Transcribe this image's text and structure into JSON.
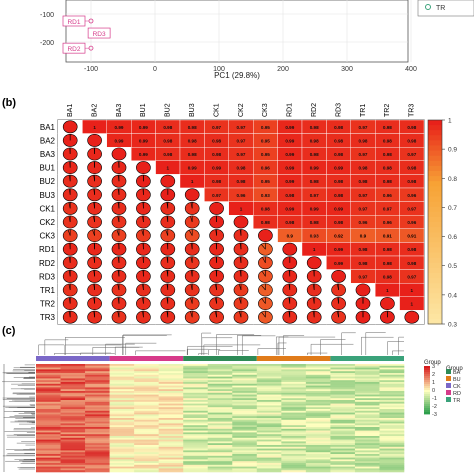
{
  "panels": {
    "b_label": "(b)",
    "c_label": "(c)"
  },
  "colors": {
    "corr_high": "#e8211a",
    "corr_mid": "#f7a235",
    "corr_low": "#fde9a8",
    "heat_high": "#d7191c",
    "heat_mid": "#ffffbf",
    "heat_low": "#1a9641",
    "group_BA": "#2e8b57",
    "group_BU": "#e07b1a",
    "group_CK": "#7b68c8",
    "group_RD": "#d63a8a",
    "group_TR": "#3aa27a"
  },
  "chart_data": [
    {
      "type": "scatter",
      "panel": "a",
      "xlabel": "PC1 (29.8%)",
      "ylabel": "",
      "x_ticks": [
        "-100",
        "0",
        "100",
        "200",
        "300",
        "400"
      ],
      "y_ticks": [
        "-100",
        "-200"
      ],
      "points": [
        {
          "label": "RD1",
          "x": -100,
          "y": -125
        },
        {
          "label": "RD3",
          "x": -92,
          "y": -168
        },
        {
          "label": "RD2",
          "x": -100,
          "y": -222
        }
      ],
      "legend": [
        {
          "label": "TR",
          "color": "#3aa27a"
        }
      ]
    },
    {
      "type": "heatmap",
      "panel": "b",
      "labels": [
        "BA1",
        "BA2",
        "BA3",
        "BU1",
        "BU2",
        "BU3",
        "CK1",
        "CK2",
        "CK3",
        "RD1",
        "RD2",
        "RD3",
        "TR1",
        "TR2",
        "TR3"
      ],
      "upper_values": [
        [
          null,
          1,
          0.99,
          0.99,
          0.98,
          0.98,
          0.97,
          0.97,
          0.95,
          0.99,
          0.98,
          0.98,
          0.97,
          0.98,
          0.98
        ],
        [
          null,
          null,
          0.99,
          0.99,
          0.98,
          0.98,
          0.98,
          0.97,
          0.95,
          0.99,
          0.98,
          0.98,
          0.98,
          0.98,
          0.98
        ],
        [
          null,
          null,
          null,
          0.99,
          0.98,
          0.98,
          0.98,
          0.97,
          0.95,
          0.99,
          0.98,
          0.98,
          0.97,
          0.98,
          0.97
        ],
        [
          null,
          null,
          null,
          null,
          1,
          0.99,
          0.99,
          0.98,
          0.96,
          0.99,
          0.99,
          0.99,
          0.98,
          0.98,
          0.98
        ],
        [
          null,
          null,
          null,
          null,
          null,
          1,
          0.98,
          0.98,
          0.95,
          0.99,
          0.98,
          0.98,
          0.98,
          0.98,
          0.98
        ],
        [
          null,
          null,
          null,
          null,
          null,
          null,
          0.97,
          0.96,
          0.93,
          0.98,
          0.97,
          0.98,
          0.97,
          0.96,
          0.96
        ],
        [
          null,
          null,
          null,
          null,
          null,
          null,
          null,
          1,
          0.98,
          0.99,
          0.99,
          0.99,
          0.97,
          0.97,
          0.97
        ],
        [
          null,
          null,
          null,
          null,
          null,
          null,
          null,
          null,
          0.98,
          0.98,
          0.98,
          0.98,
          0.96,
          0.96,
          0.96
        ],
        [
          null,
          null,
          null,
          null,
          null,
          null,
          null,
          null,
          null,
          0.9,
          0.93,
          0.92,
          0.9,
          0.91,
          0.91
        ],
        [
          null,
          null,
          null,
          null,
          null,
          null,
          null,
          null,
          null,
          null,
          1,
          0.99,
          0.98,
          0.98,
          0.98
        ],
        [
          null,
          null,
          null,
          null,
          null,
          null,
          null,
          null,
          null,
          null,
          null,
          0.99,
          0.98,
          0.98,
          0.98
        ],
        [
          null,
          null,
          null,
          null,
          null,
          null,
          null,
          null,
          null,
          null,
          null,
          null,
          0.97,
          0.98,
          0.97
        ],
        [
          null,
          null,
          null,
          null,
          null,
          null,
          null,
          null,
          null,
          null,
          null,
          null,
          null,
          1,
          1
        ],
        [
          null,
          null,
          null,
          null,
          null,
          null,
          null,
          null,
          null,
          null,
          null,
          null,
          null,
          null,
          1
        ],
        [
          null,
          null,
          null,
          null,
          null,
          null,
          null,
          null,
          null,
          null,
          null,
          null,
          null,
          null,
          null
        ]
      ],
      "upper_text": [
        [
          null,
          "1",
          "0.99",
          "0.99",
          "0.98",
          "0.98",
          "0.97",
          "0.97",
          "0.95",
          "0.99",
          "0.98",
          "0.98",
          "0.97",
          "0.98",
          "0.98"
        ],
        [
          null,
          null,
          "0.99",
          "0.99",
          "0.98",
          "0.98",
          "0.98",
          "0.97",
          "0.95",
          "0.99",
          "0.98",
          "0.98",
          "0.98",
          "0.98",
          "0.98"
        ],
        [
          null,
          null,
          null,
          "0.99",
          "0.98",
          "0.98",
          "0.98",
          "0.97",
          "0.95",
          "0.99",
          "0.98",
          "0.98",
          "0.97",
          "0.98",
          "0.97"
        ],
        [
          null,
          null,
          null,
          null,
          "1",
          "0.99",
          "0.99",
          "0.98",
          "0.96",
          "0.99",
          "0.99",
          "0.99",
          "0.98",
          "0.98",
          "0.98"
        ],
        [
          null,
          null,
          null,
          null,
          null,
          "1",
          "0.98",
          "0.98",
          "0.95",
          "0.99",
          "0.98",
          "0.98",
          "0.98",
          "0.98",
          "0.98"
        ],
        [
          null,
          null,
          null,
          null,
          null,
          null,
          "0.97",
          "0.96",
          "0.93",
          "0.98",
          "0.97",
          "0.98",
          "0.97",
          "0.96",
          "0.96"
        ],
        [
          null,
          null,
          null,
          null,
          null,
          null,
          null,
          "1",
          "0.98",
          "0.99",
          "0.99",
          "0.99",
          "0.97",
          "0.97",
          "0.97"
        ],
        [
          null,
          null,
          null,
          null,
          null,
          null,
          null,
          null,
          "0.98",
          "0.98",
          "0.98",
          "0.98",
          "0.96",
          "0.96",
          "0.96"
        ],
        [
          null,
          null,
          null,
          null,
          null,
          null,
          null,
          null,
          null,
          "0.9",
          "0.93",
          "0.92",
          "0.9",
          "0.91",
          "0.91"
        ],
        [
          null,
          null,
          null,
          null,
          null,
          null,
          null,
          null,
          null,
          null,
          "1",
          "0.99",
          "0.98",
          "0.98",
          "0.98"
        ],
        [
          null,
          null,
          null,
          null,
          null,
          null,
          null,
          null,
          null,
          null,
          null,
          "0.99",
          "0.98",
          "0.98",
          "0.98"
        ],
        [
          null,
          null,
          null,
          null,
          null,
          null,
          null,
          null,
          null,
          null,
          null,
          null,
          "0.97",
          "0.98",
          "0.97"
        ],
        [
          null,
          null,
          null,
          null,
          null,
          null,
          null,
          null,
          null,
          null,
          null,
          null,
          null,
          "1",
          "1"
        ],
        [
          null,
          null,
          null,
          null,
          null,
          null,
          null,
          null,
          null,
          null,
          null,
          null,
          null,
          null,
          "1"
        ],
        [
          null,
          null,
          null,
          null,
          null,
          null,
          null,
          null,
          null,
          null,
          null,
          null,
          null,
          null,
          null
        ]
      ],
      "colorbar_ticks": [
        "1",
        "0.9",
        "0.8",
        "0.7",
        "0.6",
        "0.5",
        "0.4",
        "0.3"
      ],
      "colorbar_range": [
        0.3,
        1
      ]
    },
    {
      "type": "heatmap",
      "panel": "c",
      "groups": [
        "BA",
        "BU",
        "CK",
        "RD",
        "TR"
      ],
      "group_title": "Group",
      "legend_title": "Group",
      "colorbar_ticks": [
        "3",
        "2",
        "1",
        "0",
        "-1",
        "-2",
        "-3"
      ],
      "colorbar_range": [
        -3,
        3
      ]
    }
  ]
}
